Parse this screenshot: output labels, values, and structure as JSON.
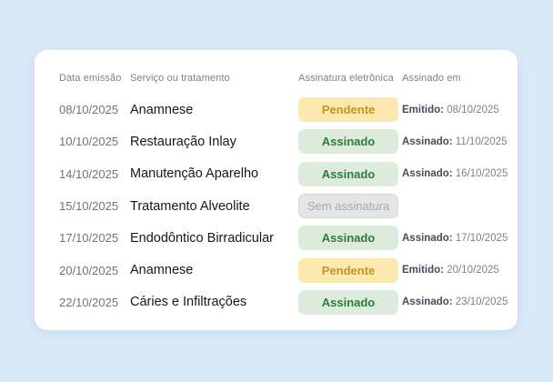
{
  "page": {
    "background_color": "#d9e9f8",
    "card_color": "#ffffff"
  },
  "table": {
    "columns": [
      "Data emissão",
      "Serviço ou tratamento",
      "Assinatura eletrônica",
      "Assinado em"
    ],
    "rows": [
      {
        "date": "08/10/2025",
        "service": "Anamnese",
        "status": "Pendente",
        "status_type": "pending",
        "signed_label": "Emitido:",
        "signed_date": "08/10/2025"
      },
      {
        "date": "10/10/2025",
        "service": "Restauração Inlay",
        "status": "Assinado",
        "status_type": "signed",
        "signed_label": "Assinado:",
        "signed_date": "11/10/2025"
      },
      {
        "date": "14/10/2025",
        "service": "Manutenção Aparelho",
        "status": "Assinado",
        "status_type": "signed",
        "signed_label": "Assinado:",
        "signed_date": "16/10/2025"
      },
      {
        "date": "15/10/2025",
        "service": "Tratamento Alveolite",
        "status": "Sem assinatura",
        "status_type": "none",
        "signed_label": "",
        "signed_date": ""
      },
      {
        "date": "17/10/2025",
        "service": "Endodôntico Birradicular",
        "status": "Assinado",
        "status_type": "signed",
        "signed_label": "Assinado:",
        "signed_date": "17/10/2025"
      },
      {
        "date": "20/10/2025",
        "service": "Anamnese",
        "status": "Pendente",
        "status_type": "pending",
        "signed_label": "Emitido:",
        "signed_date": "20/10/2025"
      },
      {
        "date": "22/10/2025",
        "service": "Cáries e Infiltrações",
        "status": "Assinado",
        "status_type": "signed",
        "signed_label": "Assinado:",
        "signed_date": "23/10/2025"
      }
    ]
  },
  "status_colors": {
    "pending": {
      "background": "#fbe9ad",
      "text": "#c29420"
    },
    "signed": {
      "background": "#dcebdb",
      "text": "#2e7d3d"
    },
    "none": {
      "background": "#e4e5e7",
      "text": "#a5aab1",
      "border": "#c9cbcf"
    }
  }
}
